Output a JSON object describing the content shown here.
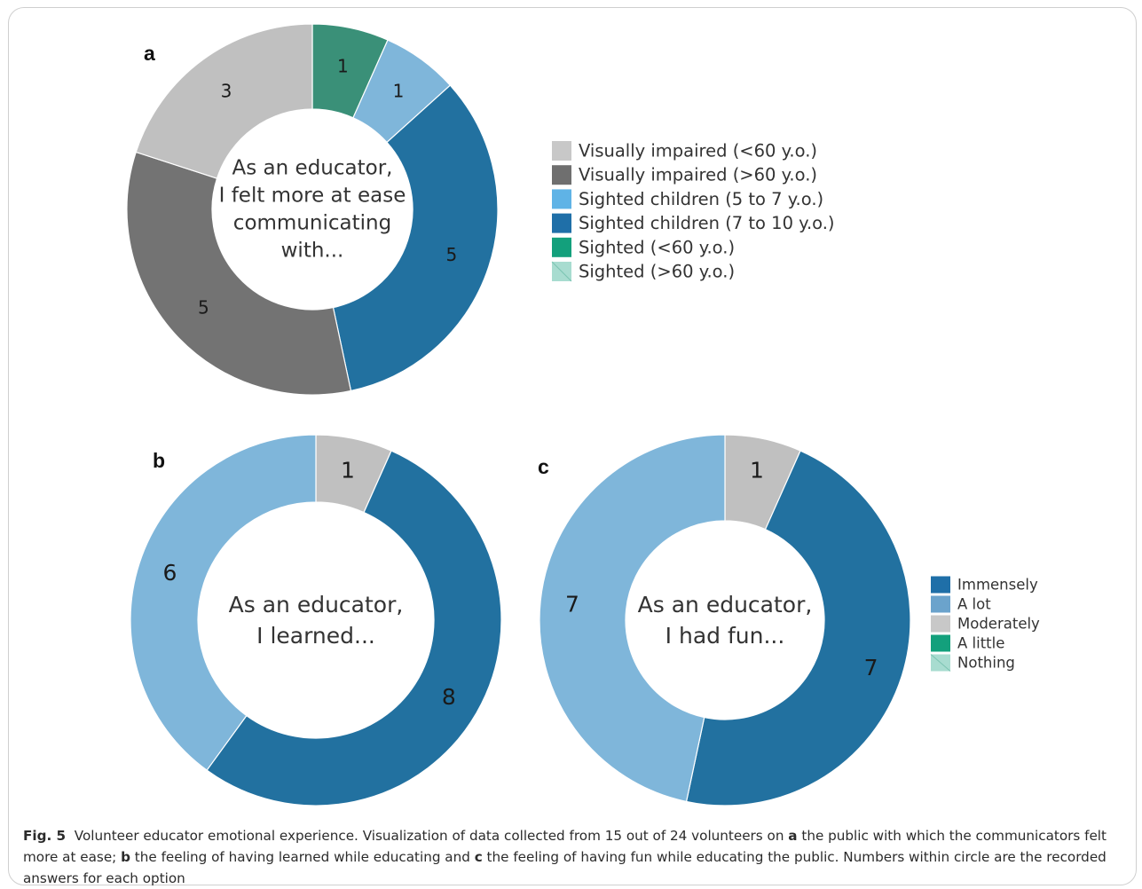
{
  "chart_data": [
    {
      "type": "pie",
      "panel_label": "a",
      "center_text": [
        "As an educator,",
        "I felt more at ease",
        "communicating",
        "with..."
      ],
      "categories": [
        "Visually impaired (<60 y.o.)",
        "Visually impaired (>60 y.o.)",
        "Sighted children (5 to 7 y.o.)",
        "Sighted children (7 to 10 y.o.)",
        "Sighted (<60 y.o.)",
        "Sighted (>60 y.o.)"
      ],
      "values": [
        3,
        5,
        1,
        5,
        1,
        0
      ],
      "colors": [
        "#c0c0c0",
        "#737373",
        "#7fb6da",
        "#2271a0",
        "#3a9078",
        "#a8dcd0"
      ],
      "draw_order": [
        "Sighted (<60 y.o.)",
        "Sighted children (5 to 7 y.o.)",
        "Sighted children (7 to 10 y.o.)",
        "Visually impaired (>60 y.o.)",
        "Visually impaired (<60 y.o.)"
      ],
      "legend": [
        "Visually impaired (<60 y.o.)",
        "Visually impaired (>60 y.o.)",
        "Sighted children (5 to 7 y.o.)",
        "Sighted children (7 to 10 y.o.)",
        "Sighted (<60 y.o.)",
        "Sighted (>60 y.o.)"
      ],
      "legend_colors": [
        "#c8c8c8",
        "#6f6f6f",
        "#5fb3e6",
        "#1f6fa8",
        "#13a07c",
        "#a8dcd0"
      ],
      "legend_placement": "right"
    },
    {
      "type": "pie",
      "panel_label": "b",
      "center_text": [
        "As an educator,",
        "I learned..."
      ],
      "categories": [
        "Moderately",
        "Immensely",
        "A lot"
      ],
      "values": [
        1,
        8,
        6
      ],
      "colors": [
        "#c0c0c0",
        "#2271a0",
        "#7fb6da"
      ]
    },
    {
      "type": "pie",
      "panel_label": "c",
      "center_text": [
        "As an educator,",
        "I had fun..."
      ],
      "categories": [
        "Moderately",
        "Immensely",
        "A lot"
      ],
      "values": [
        1,
        7,
        7
      ],
      "colors": [
        "#c0c0c0",
        "#2271a0",
        "#7fb6da"
      ],
      "legend": [
        "Immensely",
        "A lot",
        "Moderately",
        "A little",
        "Nothing"
      ],
      "legend_colors": [
        "#1f6fa8",
        "#6ba3cc",
        "#c8c8c8",
        "#13a07c",
        "#a8dcd0"
      ],
      "legend_placement": "right"
    }
  ],
  "caption": {
    "fig_label": "Fig. 5",
    "parts": [
      "Volunteer educator emotional experience. Visualization of data collected from 15 out of 24 volunteers on ",
      "a",
      " the public with which the communicators felt more at ease; ",
      "b",
      " the feeling of having learned while educating and ",
      "c",
      " the feeling of having fun while educating the public. Numbers within circle are the recorded answers for each option"
    ]
  }
}
